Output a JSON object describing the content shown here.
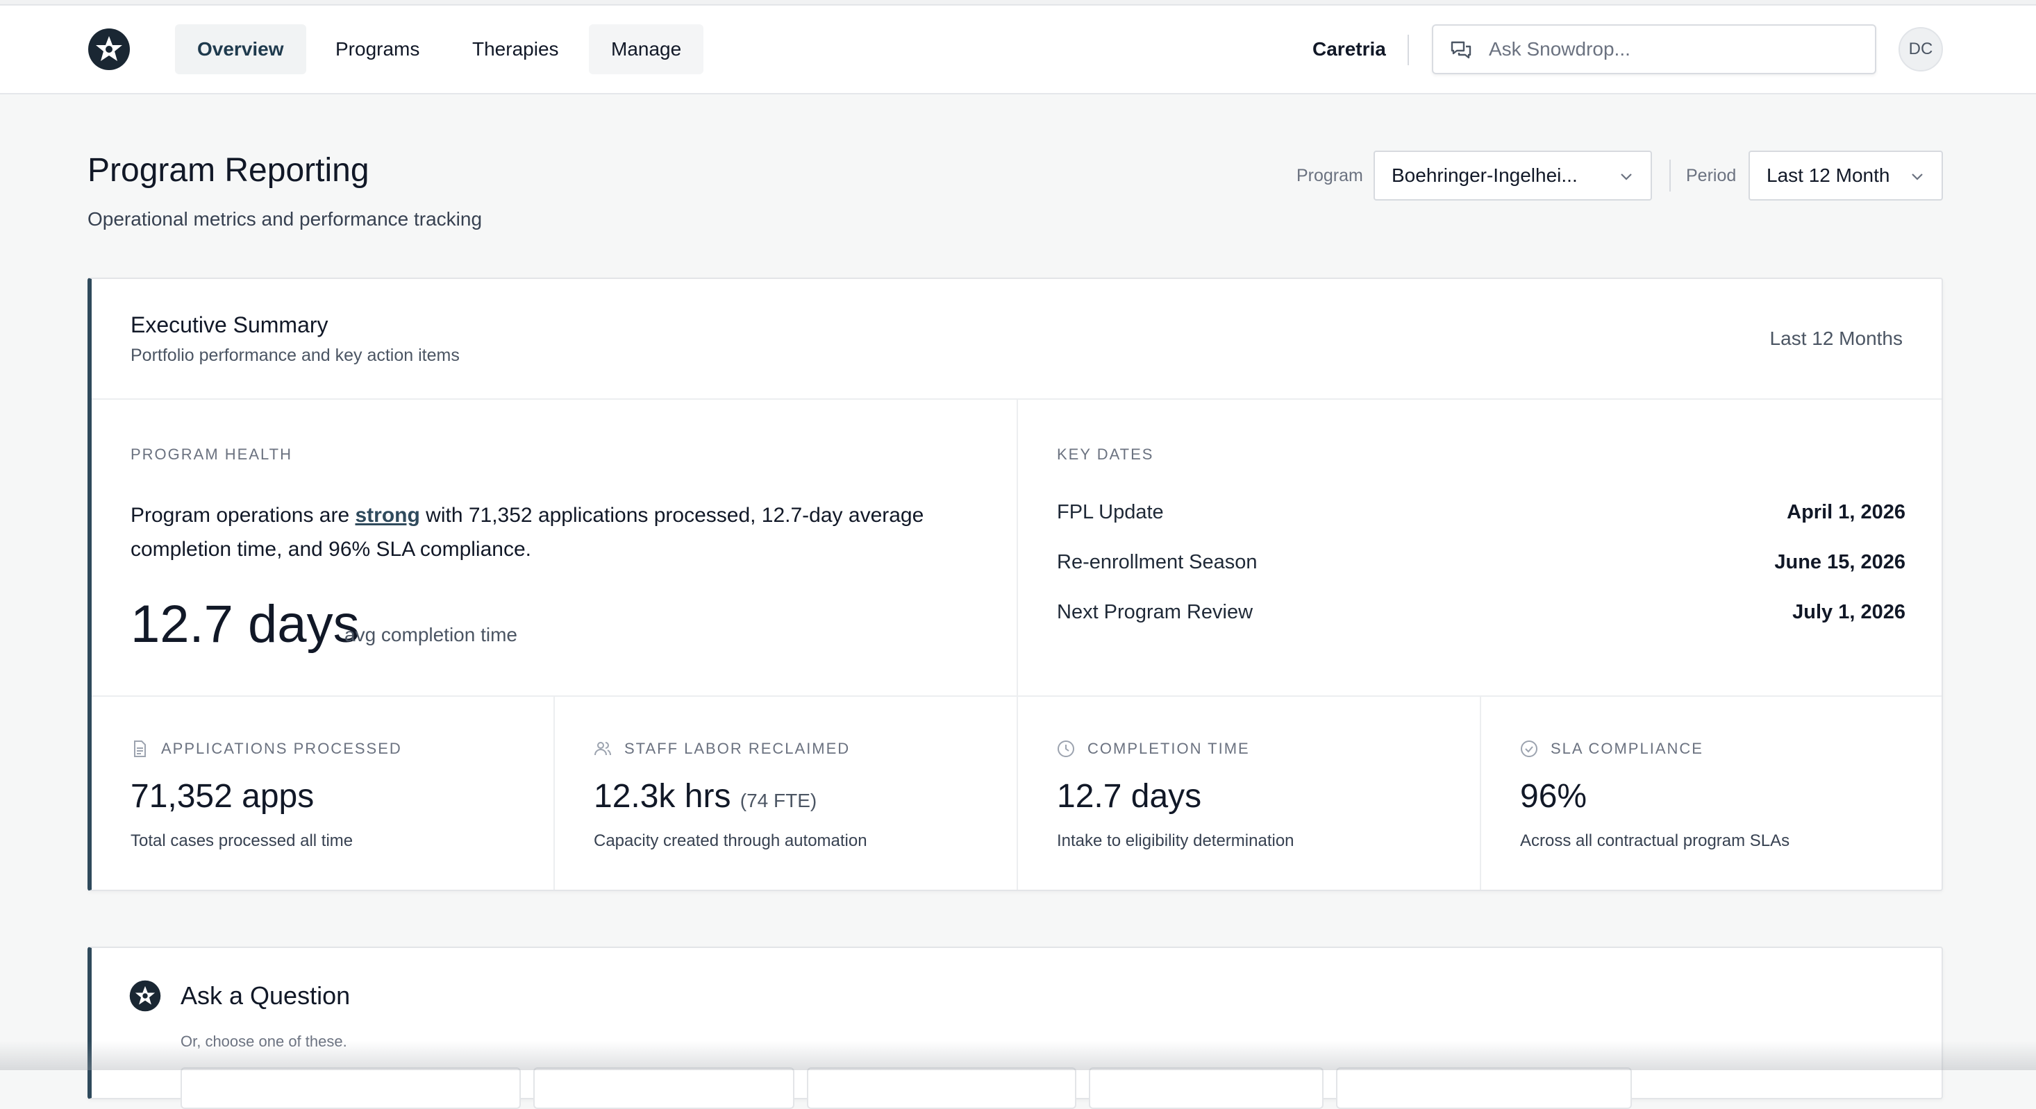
{
  "nav": {
    "tabs": [
      {
        "label": "Overview"
      },
      {
        "label": "Programs"
      },
      {
        "label": "Therapies"
      },
      {
        "label": "Manage"
      }
    ],
    "org_name": "Caretria",
    "search": {
      "placeholder": "Ask Snowdrop...",
      "value": ""
    },
    "avatar_initials": "DC"
  },
  "header": {
    "title": "Program Reporting",
    "subtitle": "Operational metrics and performance tracking",
    "filters": {
      "program_label": "Program",
      "program_value": "Boehringer-Ingelhei...",
      "period_label": "Period",
      "period_value": "Last 12 Month"
    }
  },
  "executive_summary": {
    "title": "Executive Summary",
    "subtitle": "Portfolio performance and key action items",
    "period": "Last 12 Months",
    "program_health": {
      "eyebrow": "PROGRAM HEALTH",
      "text_before": "Program operations are ",
      "status_word": "strong",
      "text_after": " with 71,352 applications processed, 12.7-day average completion time, and 96% SLA compliance.",
      "big_value": "12.7 days",
      "big_unit": "avg completion time"
    },
    "key_dates": {
      "eyebrow": "KEY DATES",
      "items": [
        {
          "label": "FPL Update",
          "date": "April 1, 2026"
        },
        {
          "label": "Re-enrollment Season",
          "date": "June 15, 2026"
        },
        {
          "label": "Next Program Review",
          "date": "July 1, 2026"
        }
      ]
    },
    "metrics": [
      {
        "icon": "document-icon",
        "label": "APPLICATIONS PROCESSED",
        "value": "71,352 apps",
        "extra": "",
        "caption": "Total cases processed all time"
      },
      {
        "icon": "users-icon",
        "label": "STAFF LABOR RECLAIMED",
        "value": "12.3k hrs",
        "extra": "(74 FTE)",
        "caption": "Capacity created through automation"
      },
      {
        "icon": "clock-icon",
        "label": "COMPLETION TIME",
        "value": "12.7 days",
        "extra": "",
        "caption": "Intake to eligibility determination"
      },
      {
        "icon": "check-circle-icon",
        "label": "SLA COMPLIANCE",
        "value": "96%",
        "extra": "",
        "caption": "Across all contractual program SLAs"
      }
    ]
  },
  "ask": {
    "title": "Ask a Question",
    "subtitle": "Or, choose one of these."
  },
  "colors": {
    "accent": "#2f4a5c",
    "background": "#f6f7f7",
    "border": "#e3e5e8"
  }
}
